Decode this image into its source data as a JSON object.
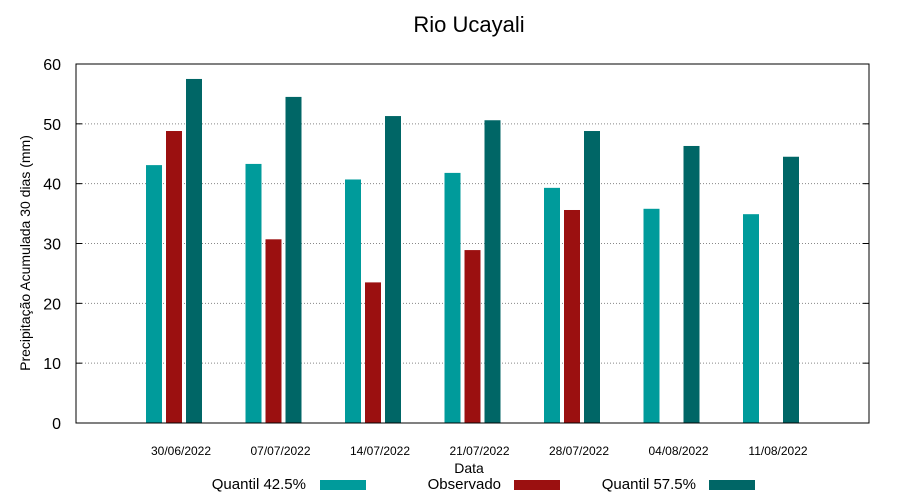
{
  "chart_data": {
    "type": "bar",
    "title": "Rio Ucayali",
    "xlabel": "Data",
    "ylabel": "Precipitação Acumulada 30 dias (mm)",
    "ylim": [
      0,
      60
    ],
    "yticks": [
      0,
      10,
      20,
      30,
      40,
      50,
      60
    ],
    "grid": true,
    "legend_position": "bottom",
    "categories": [
      "30/06/2022",
      "07/07/2022",
      "14/07/2022",
      "21/07/2022",
      "28/07/2022",
      "04/08/2022",
      "11/08/2022"
    ],
    "series": [
      {
        "name": "Quantil 42.5%",
        "color": "#009B9B",
        "values": [
          43.1,
          43.3,
          40.7,
          41.8,
          39.3,
          35.8,
          34.9
        ]
      },
      {
        "name": "Observado",
        "color": "#9B1010",
        "values": [
          48.8,
          30.7,
          23.5,
          28.9,
          35.6,
          null,
          null
        ]
      },
      {
        "name": "Quantil 57.5%",
        "color": "#006666",
        "values": [
          57.5,
          54.5,
          51.3,
          50.6,
          48.8,
          46.3,
          44.5
        ]
      }
    ]
  }
}
